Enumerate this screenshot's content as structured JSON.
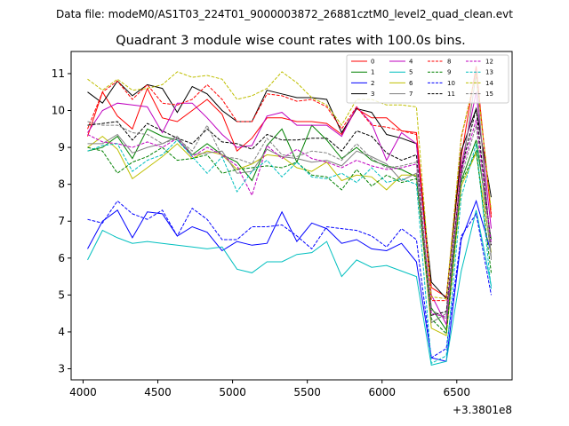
{
  "chart_data": {
    "type": "line",
    "suptitle": "Data file: modeM0/AS1T03_224T01_9000003872_26881cztM0_level2_quad_clean.evt",
    "title": "Quadrant 3 module wise count rates with 100.0s bins.",
    "xlabel": "",
    "ylabel": "",
    "x_offset_label": "+3.3801e8",
    "xlim": [
      3920,
      6870
    ],
    "ylim": [
      2.7,
      11.6
    ],
    "xticks": [
      4000,
      4500,
      5000,
      5500,
      6000,
      6500
    ],
    "yticks": [
      3,
      4,
      5,
      6,
      7,
      8,
      9,
      10,
      11
    ],
    "x": [
      4030,
      4130,
      4230,
      4330,
      4430,
      4530,
      4630,
      4730,
      4830,
      4930,
      5030,
      5130,
      5230,
      5330,
      5430,
      5530,
      5630,
      5730,
      5830,
      5930,
      6030,
      6130,
      6230,
      6330,
      6430,
      6530,
      6630,
      6730
    ],
    "series": [
      {
        "name": "0",
        "color": "#ff0000",
        "dash": "solid",
        "values": [
          9.3,
          10.5,
          9.85,
          9.5,
          10.6,
          9.8,
          9.7,
          10.0,
          10.3,
          9.9,
          8.9,
          9.25,
          9.8,
          9.8,
          9.7,
          9.7,
          9.65,
          9.35,
          10.05,
          9.8,
          9.8,
          9.45,
          9.4,
          5.2,
          4.95,
          8.75,
          11.2,
          7.1
        ]
      },
      {
        "name": "1",
        "color": "#008000",
        "dash": "solid",
        "values": [
          8.9,
          9.0,
          9.3,
          8.7,
          9.5,
          9.3,
          9.2,
          8.8,
          9.1,
          8.8,
          8.6,
          8.1,
          9.05,
          9.5,
          8.6,
          9.6,
          9.2,
          8.7,
          9.0,
          8.65,
          8.5,
          8.4,
          8.2,
          4.65,
          4.05,
          8.1,
          9.2,
          6.5
        ]
      },
      {
        "name": "2",
        "color": "#0000ff",
        "dash": "solid",
        "values": [
          6.25,
          7.0,
          7.3,
          6.55,
          7.25,
          7.2,
          6.6,
          6.85,
          6.7,
          6.2,
          6.45,
          6.35,
          6.4,
          7.25,
          6.45,
          6.95,
          6.8,
          6.4,
          6.5,
          6.25,
          6.2,
          6.4,
          5.9,
          3.3,
          3.2,
          6.5,
          7.55,
          6.15
        ]
      },
      {
        "name": "3",
        "color": "#000000",
        "dash": "solid",
        "values": [
          10.5,
          10.2,
          10.8,
          10.4,
          10.7,
          10.6,
          9.95,
          10.65,
          10.45,
          10.0,
          9.7,
          9.7,
          10.55,
          10.45,
          10.35,
          10.35,
          10.3,
          9.4,
          10.05,
          9.95,
          9.35,
          9.25,
          9.1,
          5.35,
          4.9,
          8.9,
          10.05,
          7.65
        ]
      },
      {
        "name": "4",
        "color": "#bf00bf",
        "dash": "solid",
        "values": [
          9.4,
          10.0,
          10.2,
          10.15,
          10.1,
          9.4,
          10.2,
          10.2,
          9.8,
          9.35,
          9.0,
          9.05,
          9.85,
          9.95,
          9.6,
          9.6,
          9.6,
          9.3,
          10.1,
          9.65,
          8.65,
          9.4,
          9.1,
          5.0,
          4.2,
          8.5,
          10.5,
          6.8
        ]
      },
      {
        "name": "5",
        "color": "#00bfbf",
        "dash": "solid",
        "values": [
          5.95,
          6.75,
          6.55,
          6.4,
          6.45,
          6.4,
          6.35,
          6.3,
          6.25,
          6.3,
          5.7,
          5.6,
          5.9,
          5.9,
          6.1,
          6.15,
          6.45,
          5.5,
          5.95,
          5.75,
          5.8,
          5.65,
          5.5,
          3.1,
          3.2,
          5.65,
          7.3,
          5.25
        ]
      },
      {
        "name": "6",
        "color": "#bfbf00",
        "dash": "solid",
        "values": [
          9.0,
          9.3,
          8.95,
          8.15,
          8.45,
          8.75,
          9.1,
          8.7,
          8.9,
          8.8,
          8.4,
          8.55,
          8.8,
          8.75,
          8.45,
          8.35,
          8.6,
          8.1,
          8.25,
          8.2,
          7.85,
          8.25,
          8.25,
          4.1,
          3.9,
          7.95,
          8.85,
          6.15
        ]
      },
      {
        "name": "7",
        "color": "#808080",
        "dash": "solid",
        "values": [
          9.1,
          9.1,
          9.35,
          8.85,
          9.0,
          9.1,
          9.3,
          8.8,
          8.85,
          8.9,
          8.3,
          8.35,
          8.95,
          8.75,
          8.7,
          8.6,
          8.65,
          8.5,
          8.9,
          8.75,
          8.55,
          8.1,
          8.3,
          4.25,
          4.5,
          8.2,
          11.0,
          6.0
        ]
      },
      {
        "name": "8",
        "color": "#ff0000",
        "dash": "dashed",
        "values": [
          9.5,
          10.5,
          10.8,
          10.3,
          10.7,
          10.2,
          10.15,
          10.3,
          10.7,
          10.3,
          9.7,
          9.7,
          10.45,
          10.4,
          10.25,
          10.3,
          10.1,
          9.5,
          10.1,
          9.6,
          9.55,
          9.45,
          9.35,
          4.85,
          4.85,
          9.25,
          11.05,
          7.2
        ]
      },
      {
        "name": "9",
        "color": "#008000",
        "dash": "dashed",
        "values": [
          9.0,
          8.9,
          8.3,
          8.6,
          8.75,
          9.0,
          8.65,
          8.7,
          8.8,
          8.3,
          8.4,
          8.45,
          8.5,
          8.45,
          8.6,
          8.25,
          8.2,
          7.85,
          8.4,
          7.95,
          8.25,
          8.05,
          8.15,
          4.35,
          3.95,
          8.05,
          8.9,
          5.6
        ]
      },
      {
        "name": "10",
        "color": "#0000ff",
        "dash": "dashed",
        "values": [
          7.05,
          6.95,
          7.55,
          7.2,
          7.05,
          7.3,
          6.6,
          7.35,
          7.05,
          6.5,
          6.5,
          6.85,
          6.85,
          6.9,
          6.6,
          6.25,
          6.85,
          6.8,
          6.75,
          6.6,
          6.3,
          6.8,
          6.5,
          3.3,
          3.55,
          6.6,
          7.2,
          5.0
        ]
      },
      {
        "name": "11",
        "color": "#000000",
        "dash": "dashed",
        "values": [
          9.6,
          9.65,
          9.7,
          9.2,
          9.65,
          9.45,
          9.25,
          9.1,
          9.5,
          9.15,
          9.1,
          8.95,
          9.35,
          9.2,
          9.2,
          9.25,
          9.25,
          8.9,
          9.45,
          9.3,
          8.85,
          8.65,
          8.8,
          4.45,
          4.55,
          8.4,
          10.05,
          6.35
        ]
      },
      {
        "name": "12",
        "color": "#bf00bf",
        "dash": "dashed",
        "values": [
          9.35,
          9.15,
          9.1,
          9.0,
          9.15,
          9.0,
          9.25,
          8.75,
          9.0,
          8.8,
          8.5,
          7.7,
          9.05,
          8.7,
          8.95,
          8.7,
          8.6,
          8.45,
          8.65,
          8.5,
          8.4,
          8.45,
          8.55,
          4.5,
          4.4,
          8.35,
          9.75,
          6.4
        ]
      },
      {
        "name": "13",
        "color": "#00bfbf",
        "dash": "dashed",
        "values": [
          8.9,
          9.05,
          9.1,
          8.35,
          8.65,
          8.8,
          9.2,
          8.75,
          8.3,
          8.75,
          7.8,
          8.35,
          8.65,
          8.2,
          8.6,
          8.2,
          8.15,
          8.3,
          8.05,
          8.45,
          8.05,
          8.15,
          8.0,
          3.15,
          3.35,
          7.65,
          9.1,
          5.15
        ]
      },
      {
        "name": "14",
        "color": "#bfbf00",
        "dash": "dashed",
        "values": [
          10.85,
          10.55,
          10.85,
          10.55,
          10.6,
          10.7,
          11.05,
          10.9,
          10.95,
          10.85,
          10.3,
          10.4,
          10.6,
          11.05,
          10.75,
          10.35,
          10.15,
          9.6,
          10.3,
          10.3,
          10.15,
          10.15,
          10.1,
          4.95,
          4.9,
          9.3,
          11.0,
          7.3
        ]
      },
      {
        "name": "15",
        "color": "#808080",
        "dash": "dashed",
        "values": [
          9.7,
          9.6,
          9.6,
          9.4,
          9.35,
          9.1,
          9.25,
          8.9,
          9.6,
          8.75,
          8.7,
          8.55,
          9.25,
          8.8,
          8.75,
          8.9,
          8.85,
          8.65,
          9.1,
          8.7,
          8.45,
          8.5,
          8.6,
          4.6,
          4.35,
          8.2,
          9.6,
          5.95
        ]
      }
    ],
    "legend": {
      "placement": "top-right",
      "columns": 4
    },
    "grid": false
  }
}
